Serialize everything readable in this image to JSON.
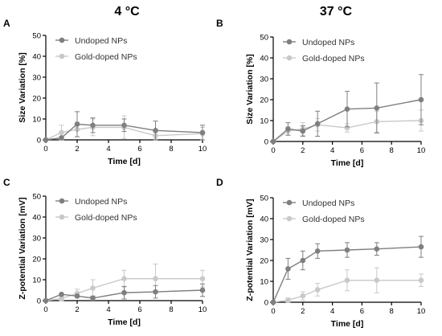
{
  "header": {
    "left_title": "4 °C",
    "right_title": "37 °C"
  },
  "colors": {
    "undoped": "#7f7f7f",
    "gold_doped": "#c9c9c9"
  },
  "chart_data": [
    {
      "panel": "A",
      "type": "line",
      "title": "",
      "xlabel": "Time [d]",
      "ylabel": "Size Variation [%]",
      "xlim": [
        0,
        10
      ],
      "ylim": [
        0,
        50
      ],
      "xticks": [
        0,
        2,
        4,
        6,
        8,
        10
      ],
      "yticks": [
        0,
        10,
        20,
        30,
        40,
        50
      ],
      "legend": "top-left",
      "series": [
        {
          "name": "Undoped NPs",
          "x": [
            0,
            1,
            2,
            3,
            5,
            7,
            10
          ],
          "values": [
            0,
            1,
            7.5,
            7,
            7,
            4.5,
            3.5
          ],
          "errors": [
            0,
            0.5,
            6,
            3.5,
            3,
            4.5,
            3.5
          ]
        },
        {
          "name": "Gold-doped NPs",
          "x": [
            0,
            1,
            2,
            3,
            5,
            7,
            10
          ],
          "values": [
            0,
            3.5,
            5,
            6,
            6,
            2,
            3
          ],
          "errors": [
            0,
            3.5,
            3.5,
            4,
            5.5,
            1.5,
            3
          ]
        }
      ]
    },
    {
      "panel": "B",
      "type": "line",
      "title": "",
      "xlabel": "Time [d]",
      "ylabel": "Size Variation [%]",
      "xlim": [
        0,
        10
      ],
      "ylim": [
        0,
        50
      ],
      "xticks": [
        0,
        2,
        4,
        6,
        8,
        10
      ],
      "yticks": [
        0,
        10,
        20,
        30,
        40,
        50
      ],
      "legend": "top-left",
      "series": [
        {
          "name": "Undoped NPs",
          "x": [
            0,
            1,
            2,
            3,
            5,
            7,
            10
          ],
          "values": [
            0,
            6,
            5,
            8.5,
            15.5,
            16,
            20
          ],
          "errors": [
            0,
            3,
            2.5,
            6,
            8.5,
            12,
            12
          ]
        },
        {
          "name": "Gold-doped NPs",
          "x": [
            0,
            1,
            2,
            3,
            5,
            7,
            10
          ],
          "values": [
            0,
            5,
            6,
            8,
            6.5,
            9.5,
            10
          ],
          "errors": [
            0,
            2,
            3,
            3,
            2,
            5,
            5
          ]
        }
      ]
    },
    {
      "panel": "C",
      "type": "line",
      "title": "",
      "xlabel": "Time [d]",
      "ylabel": "Z-potential Variation [mV]",
      "xlim": [
        0,
        10
      ],
      "ylim": [
        0,
        50
      ],
      "xticks": [
        0,
        2,
        4,
        6,
        8,
        10
      ],
      "yticks": [
        0,
        10,
        20,
        30,
        40,
        50
      ],
      "legend": "top-left",
      "series": [
        {
          "name": "Undoped NPs",
          "x": [
            0,
            1,
            2,
            3,
            5,
            7,
            10
          ],
          "values": [
            0,
            3,
            2.2,
            1.2,
            3.8,
            4.2,
            5
          ],
          "errors": [
            0,
            0.5,
            0.5,
            1,
            3,
            3,
            3
          ]
        },
        {
          "name": "Gold-doped NPs",
          "x": [
            0,
            1,
            2,
            3,
            5,
            7,
            10
          ],
          "values": [
            0,
            1,
            3.5,
            6,
            10.5,
            10.5,
            10.5
          ],
          "errors": [
            0,
            1,
            2,
            4,
            4,
            7,
            4
          ]
        }
      ]
    },
    {
      "panel": "D",
      "type": "line",
      "title": "",
      "xlabel": "Time [d]",
      "ylabel": "Z-potential Variation [mV]",
      "xlim": [
        0,
        10
      ],
      "ylim": [
        0,
        50
      ],
      "xticks": [
        0,
        2,
        4,
        6,
        8,
        10
      ],
      "yticks": [
        0,
        10,
        20,
        30,
        40,
        50
      ],
      "legend": "top-left",
      "series": [
        {
          "name": "Undoped NPs",
          "x": [
            0,
            1,
            2,
            3,
            5,
            7,
            10
          ],
          "values": [
            0,
            16,
            20,
            24.5,
            25,
            25.5,
            26.5
          ],
          "errors": [
            0,
            5,
            4.5,
            3.5,
            3.5,
            3,
            5
          ]
        },
        {
          "name": "Gold-doped NPs",
          "x": [
            0,
            1,
            2,
            3,
            5,
            7,
            10
          ],
          "values": [
            0,
            1,
            3,
            6,
            10.5,
            10.5,
            10.5
          ],
          "errors": [
            0,
            1,
            2,
            3,
            5,
            6,
            3
          ]
        }
      ]
    }
  ]
}
